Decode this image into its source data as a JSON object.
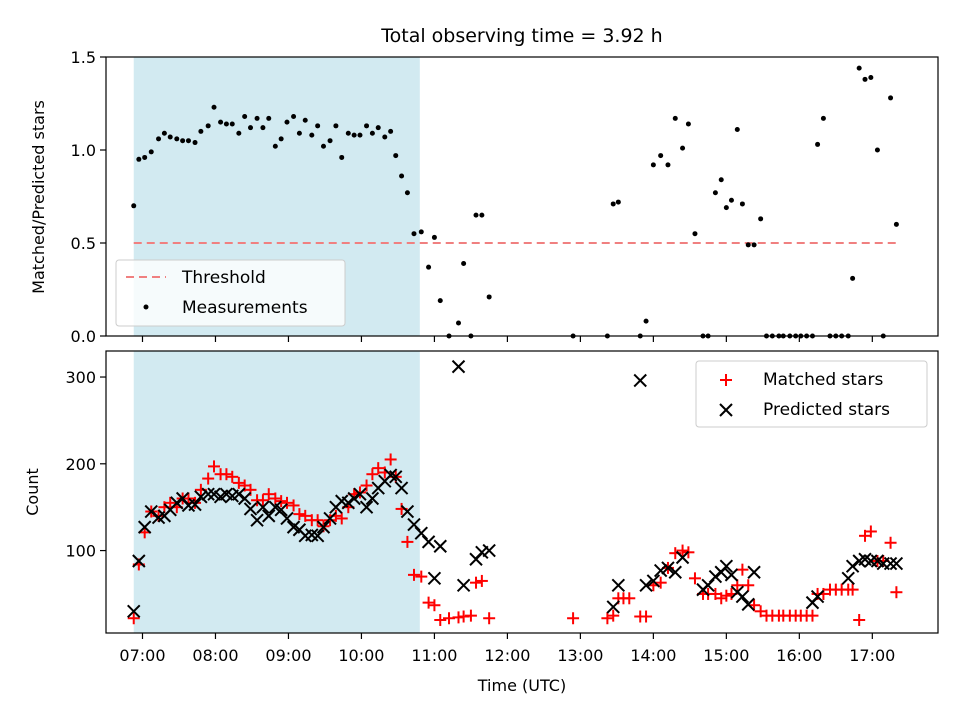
{
  "chart_data": [
    {
      "type": "scatter",
      "title": "Total observing time = 3.92 h",
      "xlabel": "",
      "ylabel": "Matched/Predicted stars",
      "ylim": [
        0,
        1.5
      ],
      "yticks": [
        "0.0",
        "0.5",
        "1.0",
        "1.5"
      ],
      "xlim_hours": [
        6.5,
        17.9
      ],
      "shaded_span_hours": [
        6.88,
        10.8
      ],
      "shaded_color": "#add8e6",
      "threshold": {
        "name": "Threshold",
        "value": 0.5,
        "x_range_hours": [
          6.88,
          17.33
        ],
        "color": "#f08080"
      },
      "legend": {
        "placement": "lower-left",
        "entries": [
          "Threshold",
          "Measurements"
        ]
      },
      "series": [
        {
          "name": "Measurements",
          "color": "#000000",
          "marker": "dot",
          "x": [
            6.88,
            6.95,
            7.03,
            7.12,
            7.22,
            7.3,
            7.38,
            7.47,
            7.55,
            7.63,
            7.72,
            7.8,
            7.9,
            7.98,
            8.07,
            8.15,
            8.23,
            8.32,
            8.4,
            8.48,
            8.57,
            8.65,
            8.73,
            8.82,
            8.9,
            8.98,
            9.07,
            9.15,
            9.23,
            9.32,
            9.4,
            9.48,
            9.57,
            9.65,
            9.73,
            9.82,
            9.9,
            9.98,
            10.07,
            10.15,
            10.23,
            10.32,
            10.4,
            10.47,
            10.55,
            10.63,
            10.72,
            10.82,
            10.92,
            11.0,
            11.08,
            11.2,
            11.33,
            11.4,
            11.5,
            11.57,
            11.65,
            11.75,
            12.9,
            13.37,
            13.45,
            13.52,
            13.82,
            13.9,
            14.0,
            14.1,
            14.2,
            14.3,
            14.4,
            14.48,
            14.57,
            14.68,
            14.75,
            14.85,
            14.93,
            15.0,
            15.07,
            15.15,
            15.22,
            15.3,
            15.38,
            15.47,
            15.55,
            15.63,
            15.72,
            15.78,
            15.87,
            15.95,
            16.02,
            16.1,
            16.18,
            16.25,
            16.33,
            16.42,
            16.5,
            16.58,
            16.67,
            16.73,
            16.82,
            16.9,
            16.98,
            17.07,
            17.15,
            17.25,
            17.33
          ],
          "y": [
            0.7,
            0.95,
            0.96,
            0.99,
            1.06,
            1.09,
            1.07,
            1.06,
            1.05,
            1.05,
            1.04,
            1.1,
            1.13,
            1.23,
            1.15,
            1.14,
            1.14,
            1.09,
            1.18,
            1.12,
            1.17,
            1.12,
            1.17,
            1.02,
            1.06,
            1.15,
            1.18,
            1.09,
            1.16,
            1.08,
            1.13,
            1.02,
            1.05,
            1.13,
            0.96,
            1.09,
            1.08,
            1.08,
            1.13,
            1.09,
            1.12,
            1.07,
            1.1,
            0.97,
            0.86,
            0.77,
            0.55,
            0.56,
            0.37,
            0.53,
            0.19,
            0.0,
            0.07,
            0.39,
            0.0,
            0.65,
            0.65,
            0.21,
            0.0,
            0.0,
            0.71,
            0.72,
            0.0,
            0.08,
            0.92,
            0.97,
            0.92,
            1.17,
            1.01,
            1.14,
            0.55,
            0.0,
            0.0,
            0.77,
            0.84,
            0.69,
            0.73,
            1.11,
            0.71,
            0.49,
            0.49,
            0.63,
            0.0,
            0.0,
            0.0,
            0.0,
            0.0,
            0.0,
            0.0,
            0.0,
            0.0,
            1.03,
            1.17,
            0.0,
            0.0,
            0.0,
            0.0,
            0.31,
            1.44,
            1.38,
            1.39,
            1.0,
            0.0,
            1.28,
            0.6
          ]
        }
      ]
    },
    {
      "type": "scatter",
      "title": "",
      "xlabel": "Time (UTC)",
      "ylabel": "Count",
      "ylim": [
        5,
        330
      ],
      "yticks": [
        "100",
        "200",
        "300"
      ],
      "xticks": [
        "07:00",
        "08:00",
        "09:00",
        "10:00",
        "11:00",
        "12:00",
        "13:00",
        "14:00",
        "15:00",
        "16:00",
        "17:00"
      ],
      "xlim_hours": [
        6.5,
        17.9
      ],
      "shaded_span_hours": [
        6.88,
        10.8
      ],
      "legend": {
        "placement": "top-right",
        "entries": [
          "Matched stars",
          "Predicted stars"
        ]
      },
      "series": [
        {
          "name": "Matched stars",
          "color": "#ff0000",
          "marker": "plus",
          "x": [
            6.88,
            6.95,
            7.03,
            7.12,
            7.22,
            7.3,
            7.38,
            7.47,
            7.55,
            7.63,
            7.72,
            7.8,
            7.9,
            7.98,
            8.07,
            8.15,
            8.23,
            8.32,
            8.4,
            8.48,
            8.57,
            8.65,
            8.73,
            8.82,
            8.9,
            8.98,
            9.07,
            9.15,
            9.23,
            9.32,
            9.4,
            9.48,
            9.57,
            9.65,
            9.73,
            9.82,
            9.9,
            9.98,
            10.07,
            10.15,
            10.23,
            10.32,
            10.4,
            10.47,
            10.55,
            10.63,
            10.72,
            10.82,
            10.92,
            11.0,
            11.08,
            11.2,
            11.33,
            11.4,
            11.5,
            11.57,
            11.65,
            11.75,
            12.9,
            13.37,
            13.45,
            13.52,
            13.59,
            13.67,
            13.82,
            13.9,
            14.0,
            14.1,
            14.2,
            14.3,
            14.4,
            14.48,
            14.57,
            14.68,
            14.75,
            14.85,
            14.93,
            15.0,
            15.07,
            15.15,
            15.22,
            15.3,
            15.38,
            15.47,
            15.55,
            15.63,
            15.72,
            15.78,
            15.87,
            15.95,
            16.02,
            16.1,
            16.18,
            16.25,
            16.33,
            16.42,
            16.5,
            16.58,
            16.67,
            16.73,
            16.82,
            16.9,
            16.98,
            17.07,
            17.15,
            17.25,
            17.33
          ],
          "y": [
            22,
            84,
            121,
            145,
            140,
            150,
            155,
            150,
            160,
            160,
            155,
            170,
            183,
            197,
            188,
            188,
            185,
            178,
            175,
            170,
            158,
            158,
            165,
            160,
            157,
            155,
            152,
            142,
            140,
            135,
            135,
            128,
            135,
            140,
            137,
            150,
            165,
            167,
            175,
            188,
            195,
            190,
            205,
            185,
            148,
            110,
            72,
            70,
            40,
            37,
            20,
            22,
            23,
            24,
            25,
            63,
            65,
            22,
            22,
            22,
            25,
            45,
            45,
            45,
            24,
            24,
            60,
            63,
            80,
            97,
            100,
            98,
            68,
            50,
            50,
            50,
            45,
            48,
            50,
            60,
            78,
            60,
            37,
            30,
            25,
            25,
            25,
            25,
            25,
            25,
            25,
            25,
            25,
            50,
            50,
            55,
            55,
            55,
            55,
            55,
            20,
            117,
            122,
            88,
            88,
            109,
            52
          ]
        },
        {
          "name": "Predicted stars",
          "color": "#000000",
          "marker": "x",
          "x": [
            6.88,
            6.95,
            7.03,
            7.12,
            7.22,
            7.3,
            7.38,
            7.47,
            7.55,
            7.63,
            7.72,
            7.8,
            7.9,
            7.98,
            8.07,
            8.15,
            8.23,
            8.32,
            8.4,
            8.48,
            8.57,
            8.65,
            8.73,
            8.82,
            8.9,
            8.98,
            9.07,
            9.15,
            9.23,
            9.32,
            9.4,
            9.48,
            9.57,
            9.65,
            9.73,
            9.82,
            9.9,
            9.98,
            10.07,
            10.15,
            10.23,
            10.32,
            10.4,
            10.47,
            10.55,
            10.63,
            10.72,
            10.82,
            10.92,
            11.0,
            11.08,
            11.33,
            11.4,
            11.57,
            11.65,
            11.75,
            13.45,
            13.52,
            13.82,
            13.9,
            14.0,
            14.1,
            14.2,
            14.3,
            14.4,
            14.68,
            14.75,
            14.85,
            14.93,
            15.0,
            15.07,
            15.15,
            15.22,
            15.3,
            15.38,
            16.18,
            16.25,
            16.67,
            16.73,
            16.82,
            16.9,
            16.98,
            17.07,
            17.15,
            17.25,
            17.33
          ],
          "y": [
            30,
            88,
            127,
            145,
            138,
            140,
            147,
            155,
            160,
            152,
            153,
            162,
            165,
            165,
            162,
            165,
            163,
            165,
            160,
            148,
            135,
            150,
            140,
            150,
            147,
            137,
            127,
            124,
            117,
            118,
            117,
            127,
            137,
            150,
            157,
            155,
            160,
            165,
            150,
            160,
            172,
            180,
            187,
            185,
            172,
            145,
            130,
            120,
            110,
            68,
            105,
            312,
            60,
            90,
            98,
            100,
            35,
            60,
            296,
            60,
            65,
            77,
            80,
            75,
            92,
            55,
            60,
            70,
            75,
            82,
            72,
            52,
            47,
            38,
            75,
            40,
            47,
            68,
            82,
            88,
            90,
            88,
            88,
            85,
            85,
            85
          ]
        }
      ]
    }
  ]
}
